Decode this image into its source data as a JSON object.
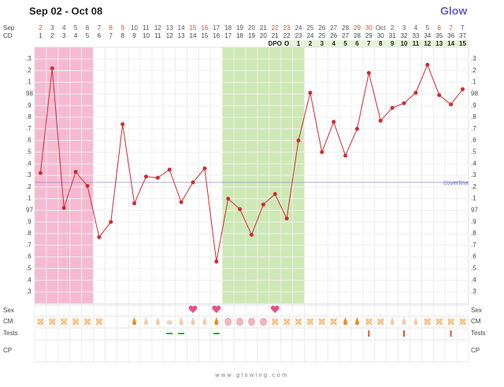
{
  "chart_data": {
    "type": "line",
    "title": "Sep 02 - Oct 08",
    "logo": "Glow",
    "month_label": "Sep",
    "dates": [
      "2",
      "3",
      "4",
      "5",
      "6",
      "7",
      "8",
      "9",
      "10",
      "11",
      "12",
      "13",
      "14",
      "15",
      "16",
      "17",
      "18",
      "19",
      "20",
      "21",
      "22",
      "23",
      "24",
      "25",
      "26",
      "27",
      "28",
      "29",
      "30",
      "Oct",
      "2",
      "3",
      "4",
      "5",
      "6",
      "7",
      "T"
    ],
    "cd_label": "CD",
    "categories": [
      "1",
      "2",
      "3",
      "4",
      "5",
      "6",
      "7",
      "8",
      "9",
      "10",
      "11",
      "12",
      "13",
      "14",
      "15",
      "16",
      "17",
      "18",
      "19",
      "20",
      "21",
      "22",
      "23",
      "24",
      "25",
      "26",
      "27",
      "28",
      "29",
      "30",
      "31",
      "32",
      "33",
      "34",
      "35",
      "36",
      "37"
    ],
    "dpo_label": "DPO",
    "dpo": [
      null,
      null,
      null,
      null,
      null,
      null,
      null,
      null,
      null,
      null,
      null,
      null,
      null,
      null,
      null,
      null,
      null,
      null,
      null,
      null,
      null,
      "O",
      "1",
      "2",
      "3",
      "4",
      "5",
      "6",
      "7",
      "8",
      "9",
      "10",
      "11",
      "12",
      "13",
      "14",
      "15"
    ],
    "values": [
      97.32,
      98.22,
      97.02,
      97.33,
      97.21,
      96.77,
      96.9,
      97.74,
      97.06,
      97.29,
      97.28,
      97.35,
      97.07,
      97.24,
      97.36,
      96.56,
      97.1,
      97.01,
      96.79,
      97.05,
      97.14,
      96.93,
      97.6,
      98.01,
      97.5,
      97.76,
      97.47,
      97.7,
      98.18,
      97.77,
      97.88,
      97.92,
      98.01,
      98.25,
      97.99,
      97.91,
      98.04
    ],
    "color": "#d42a2f",
    "ylim": [
      96.3,
      98.3
    ],
    "yticks": [
      {
        "value": 98.3,
        "label": ".3"
      },
      {
        "value": 98.2,
        "label": ".2"
      },
      {
        "value": 98.1,
        "label": ".1"
      },
      98,
      {
        "value": 97.9,
        "label": ".9"
      },
      {
        "value": 97.8,
        "label": ".8"
      },
      {
        "value": 97.7,
        "label": ".7"
      },
      {
        "value": 97.6,
        "label": ".6"
      },
      {
        "value": 97.5,
        "label": ".5"
      },
      {
        "value": 97.4,
        "label": ".4"
      },
      {
        "value": 97.3,
        "label": ".3"
      },
      {
        "value": 97.2,
        "label": ".2"
      },
      {
        "value": 97.1,
        "label": ".1"
      },
      97,
      {
        "value": 96.9,
        "label": ".9"
      },
      {
        "value": 96.8,
        "label": ".8"
      },
      {
        "value": 96.7,
        "label": ".7"
      },
      {
        "value": 96.6,
        "label": ".6"
      },
      {
        "value": 96.5,
        "label": ".5"
      },
      {
        "value": 96.4,
        "label": ".4"
      },
      {
        "value": 96.3,
        "label": ".3"
      }
    ],
    "coverline": {
      "label": "coverline",
      "value": 97.24
    },
    "rows": [
      "Sex",
      "CM",
      "Tests",
      "CP"
    ],
    "footer": "www.glowing.com",
    "grid": true
  }
}
